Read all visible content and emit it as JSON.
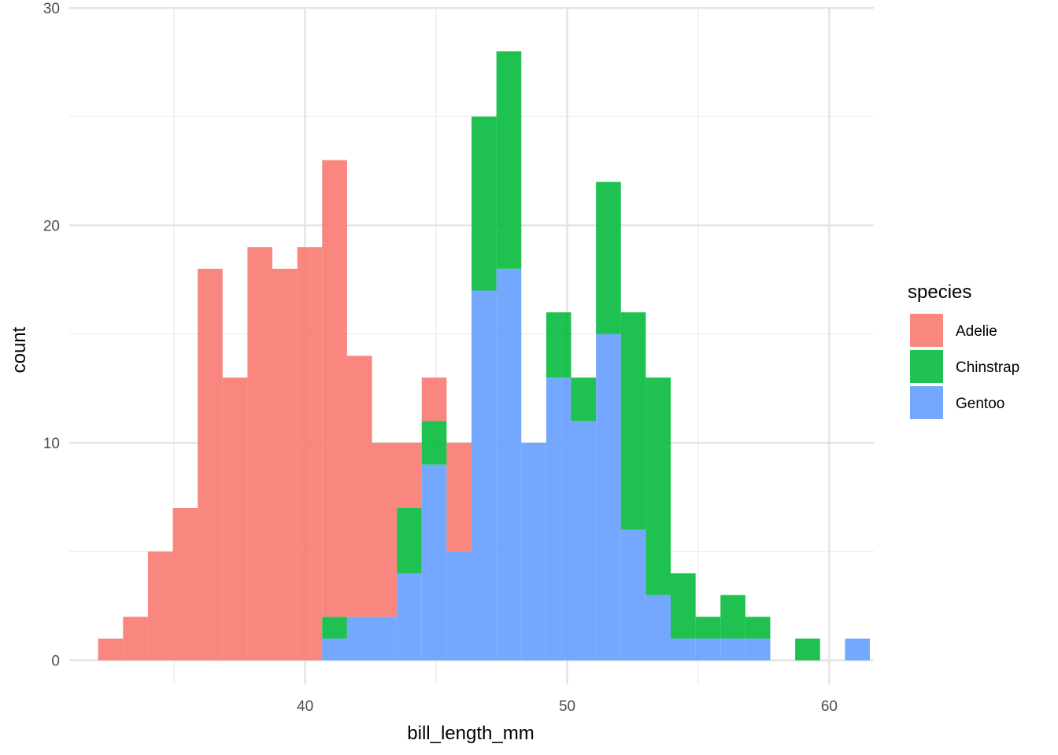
{
  "chart_data": {
    "type": "histogram",
    "stacked": true,
    "xlabel": "bill_length_mm",
    "ylabel": "count",
    "xlim": [
      31.0,
      61.7
    ],
    "ylim": [
      -1.1,
      30.0
    ],
    "x_ticks": [
      40,
      50,
      60
    ],
    "x_minor_ticks": [
      35,
      45,
      55
    ],
    "y_ticks": [
      0,
      10,
      20,
      30
    ],
    "y_minor_ticks": [
      5,
      15,
      25
    ],
    "grid": true,
    "legend": {
      "title": "species",
      "position": "right"
    },
    "bin_width": 0.95,
    "bin_start": 32.1,
    "series": [
      {
        "name": "Adelie",
        "color": "#F8766D",
        "values": [
          1,
          2,
          5,
          7,
          18,
          13,
          19,
          18,
          19,
          21,
          12,
          8,
          3,
          2,
          5,
          0,
          0,
          0,
          0,
          0,
          0,
          0,
          0,
          0,
          0,
          0,
          0,
          0,
          0,
          0,
          0
        ]
      },
      {
        "name": "Chinstrap",
        "color": "#00BA38",
        "values": [
          0,
          0,
          0,
          0,
          0,
          0,
          0,
          0,
          0,
          1,
          0,
          0,
          3,
          2,
          0,
          8,
          10,
          0,
          3,
          2,
          7,
          10,
          10,
          3,
          1,
          2,
          1,
          0,
          1,
          0,
          0
        ]
      },
      {
        "name": "Gentoo",
        "color": "#619CFF",
        "values": [
          0,
          0,
          0,
          0,
          0,
          0,
          0,
          0,
          0,
          1,
          2,
          2,
          4,
          9,
          5,
          17,
          18,
          10,
          13,
          11,
          15,
          6,
          3,
          1,
          1,
          1,
          1,
          0,
          0,
          0,
          1
        ]
      }
    ]
  }
}
